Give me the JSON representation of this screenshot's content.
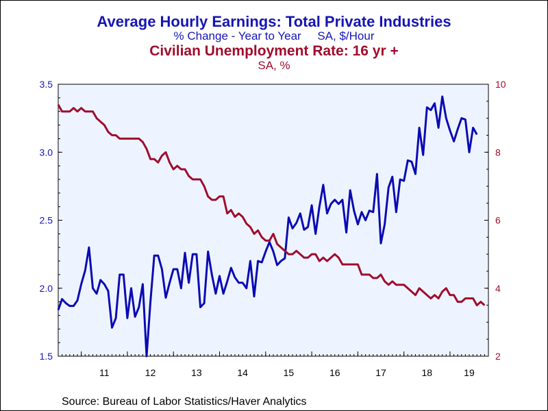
{
  "chart_data": {
    "type": "line",
    "titles": {
      "earnings_title": "Average Hourly Earnings: Total Private Industries",
      "earnings_subtitle": "% Change - Year to Year     SA, $/Hour",
      "unemployment_title": "Civilian Unemployment Rate: 16 yr +",
      "unemployment_subtitle": "SA, %"
    },
    "x_ticks": [
      "11",
      "12",
      "13",
      "14",
      "15",
      "16",
      "17",
      "18",
      "19"
    ],
    "x_range": [
      2010.5,
      2019.833
    ],
    "left_axis": {
      "ylim": [
        1.5,
        3.5
      ],
      "ticks": [
        "1.5",
        "2.0",
        "2.5",
        "3.0",
        "3.5"
      ]
    },
    "right_axis": {
      "ylim": [
        2,
        10
      ],
      "ticks": [
        "2",
        "4",
        "6",
        "8",
        "10"
      ]
    },
    "colors": {
      "earnings": "#0a0ab4",
      "unemployment": "#a00c2d",
      "plot_bg": "#eef4ff",
      "title_blue": "#1515b5",
      "title_red": "#a00c2d"
    },
    "series": [
      {
        "axis": "left",
        "start": 2010.5,
        "step_months": 1,
        "values": [
          1.84,
          1.92,
          1.89,
          1.87,
          1.87,
          1.91,
          2.03,
          2.13,
          2.3,
          2.0,
          1.96,
          2.06,
          2.03,
          1.98,
          1.71,
          1.78,
          2.1,
          2.1,
          1.78,
          2.0,
          1.79,
          1.86,
          2.03,
          1.5,
          1.9,
          2.24,
          2.24,
          2.14,
          1.93,
          2.04,
          2.14,
          2.14,
          2.0,
          2.26,
          2.04,
          2.25,
          2.25,
          1.86,
          1.89,
          2.27,
          2.1,
          1.96,
          2.09,
          1.96,
          2.05,
          2.15,
          2.08,
          2.04,
          2.04,
          2.0,
          2.2,
          1.94,
          2.2,
          2.19,
          2.27,
          2.34,
          2.27,
          2.17,
          2.2,
          2.22,
          2.52,
          2.44,
          2.48,
          2.55,
          2.43,
          2.45,
          2.61,
          2.4,
          2.6,
          2.76,
          2.55,
          2.62,
          2.65,
          2.62,
          2.65,
          2.41,
          2.72,
          2.57,
          2.47,
          2.56,
          2.5,
          2.57,
          2.56,
          2.84,
          2.33,
          2.47,
          2.74,
          2.82,
          2.56,
          2.8,
          2.79,
          2.94,
          2.93,
          2.84,
          3.18,
          2.98,
          3.33,
          3.31,
          3.36,
          3.18,
          3.41,
          3.25,
          3.16,
          3.08,
          3.17,
          3.25,
          3.24,
          3.0,
          3.18,
          3.13
        ]
      },
      {
        "axis": "right",
        "start": 2010.5,
        "step_months": 1,
        "values": [
          9.4,
          9.2,
          9.2,
          9.2,
          9.3,
          9.2,
          9.3,
          9.2,
          9.2,
          9.2,
          9.0,
          8.9,
          8.8,
          8.6,
          8.5,
          8.5,
          8.4,
          8.4,
          8.4,
          8.4,
          8.4,
          8.4,
          8.3,
          8.1,
          7.8,
          7.8,
          7.7,
          7.9,
          8.0,
          7.7,
          7.5,
          7.6,
          7.5,
          7.5,
          7.3,
          7.2,
          7.2,
          7.2,
          7.0,
          6.7,
          6.6,
          6.6,
          6.7,
          6.7,
          6.2,
          6.3,
          6.1,
          6.2,
          6.1,
          5.9,
          5.8,
          5.6,
          5.7,
          5.5,
          5.4,
          5.4,
          5.6,
          5.3,
          5.2,
          5.1,
          5.0,
          5.0,
          5.1,
          5.0,
          4.9,
          4.9,
          5.0,
          5.0,
          4.8,
          4.9,
          4.8,
          4.9,
          5.0,
          4.9,
          4.7,
          4.7,
          4.7,
          4.7,
          4.7,
          4.4,
          4.4,
          4.4,
          4.3,
          4.3,
          4.4,
          4.2,
          4.1,
          4.2,
          4.1,
          4.1,
          4.1,
          4.0,
          3.9,
          3.8,
          4.0,
          3.9,
          3.8,
          3.7,
          3.8,
          3.7,
          3.9,
          4.0,
          3.8,
          3.8,
          3.6,
          3.6,
          3.7,
          3.7,
          3.7,
          3.5,
          3.6,
          3.5
        ]
      }
    ],
    "legend": "none",
    "grid": false
  },
  "footer": {
    "source": "Source:  Bureau of Labor Statistics/Haver Analytics"
  }
}
